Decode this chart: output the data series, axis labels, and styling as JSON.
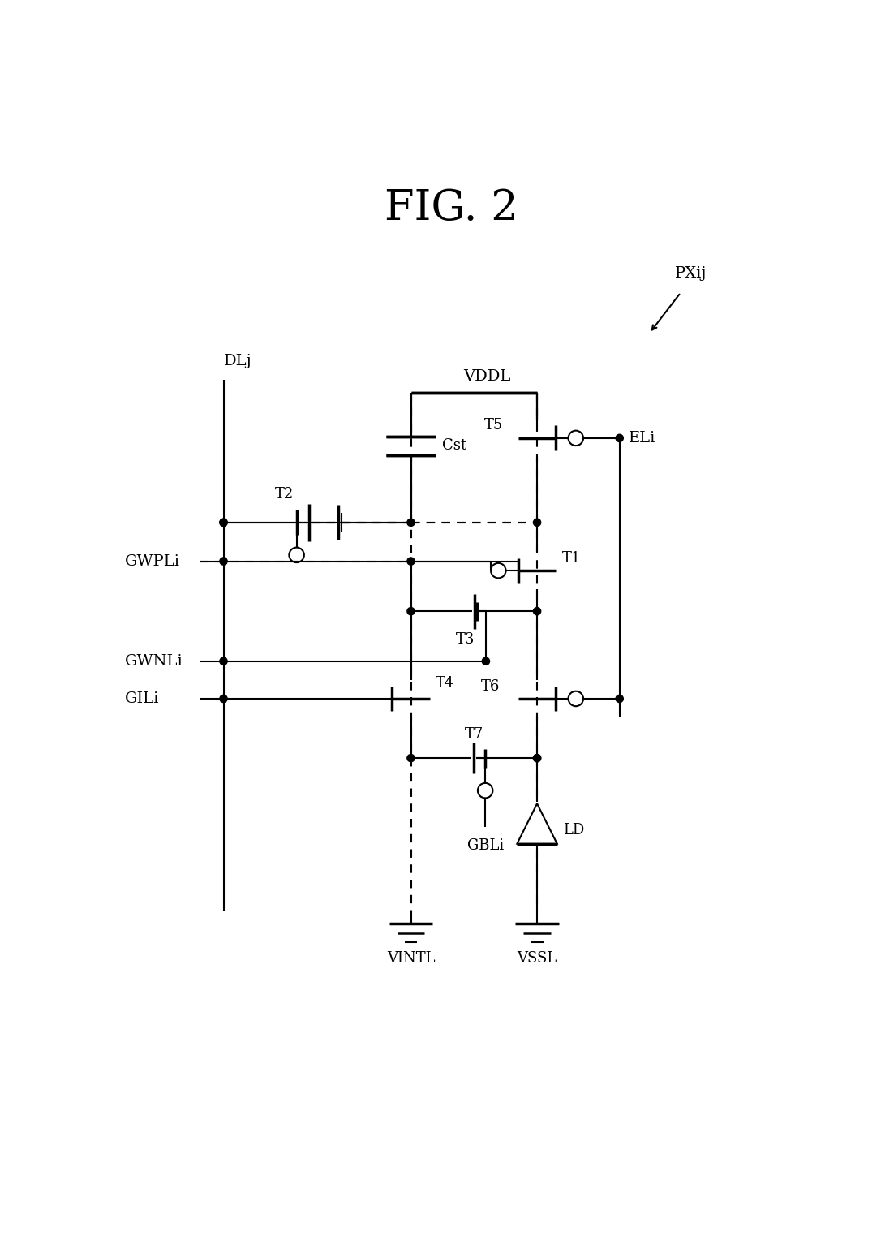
{
  "figsize": [
    10.86,
    15.28
  ],
  "dpi": 100,
  "title": "FIG. 2",
  "title_fs": 32,
  "pxij_label": "PXij",
  "vddl_label": "VDDL",
  "dlj_label": "DLj",
  "eli_label": "ELi",
  "gwpli_label": "GWPLi",
  "gwnli_label": "GWNLi",
  "gili_label": "GILi",
  "gbli_label": "GBLi",
  "vintl_label": "VINTL",
  "vssl_label": "VSSL",
  "cst_label": "Cst",
  "ld_label": "LD",
  "t_labels": [
    "T1",
    "T2",
    "T3",
    "T4",
    "T5",
    "T6",
    "T7"
  ],
  "lw": 1.5,
  "lw_thick": 2.5,
  "lw_dash": 1.5,
  "dot_r": 0.06
}
